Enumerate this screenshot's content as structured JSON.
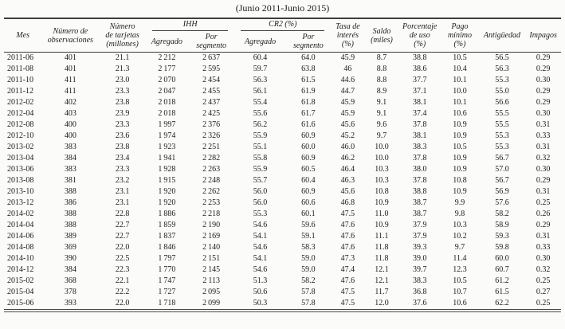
{
  "title": "(Junio 2011-Junio 2015)",
  "table": {
    "group_headers": {
      "ihh": "IHH",
      "cr2": "CR2 (%)"
    },
    "columns": {
      "mes": "Mes",
      "observaciones": "Número de\nobservaciones",
      "tarjetas": "Número\nde tarjetas\n(millones)",
      "ihh_agregado": "Agregado",
      "ihh_segmento": "Por\nsegmento",
      "cr2_agregado": "Agregado",
      "cr2_segmento": "Por\nsegmento",
      "tasa": "Tasa de\ninterés\n(%)",
      "saldo": "Saldo\n(miles)",
      "uso": "Porcentaje\nde uso\n(%)",
      "pago": "Pago\nmínimo\n(%)",
      "antiguedad": "Antigüedad",
      "impagos": "Impagos"
    },
    "column_keys": [
      "mes",
      "observaciones",
      "tarjetas",
      "ihh_agregado",
      "ihh_segmento",
      "cr2_agregado",
      "cr2_segmento",
      "tasa",
      "saldo",
      "uso",
      "pago",
      "antiguedad",
      "impagos"
    ],
    "rows": [
      [
        "2011-06",
        "401",
        "21.1",
        "2 212",
        "2 637",
        "60.4",
        "64.0",
        "45.9",
        "8.7",
        "38.8",
        "10.5",
        "56.5",
        "0.29"
      ],
      [
        "2011-08",
        "401",
        "21.3",
        "2 177",
        "2 595",
        "59.7",
        "63.8",
        "46",
        "8.8",
        "38.6",
        "10.4",
        "56.3",
        "0.29"
      ],
      [
        "2011-10",
        "411",
        "23.0",
        "2 070",
        "2 454",
        "56.3",
        "61.5",
        "44.6",
        "8.8",
        "37.7",
        "10.1",
        "55.3",
        "0.30"
      ],
      [
        "2011-12",
        "411",
        "23.3",
        "2 047",
        "2 455",
        "56.1",
        "61.9",
        "44.7",
        "8.9",
        "37.1",
        "10.0",
        "55.0",
        "0.29"
      ],
      [
        "2012-02",
        "402",
        "23.8",
        "2 018",
        "2 437",
        "55.4",
        "61.8",
        "45.9",
        "9.1",
        "38.1",
        "10.1",
        "56.6",
        "0.29"
      ],
      [
        "2012-04",
        "403",
        "23.9",
        "2 018",
        "2 425",
        "55.6",
        "61.7",
        "45.9",
        "9.1",
        "37.4",
        "10.6",
        "55.5",
        "0.30"
      ],
      [
        "2012-08",
        "400",
        "23.3",
        "1 997",
        "2 376",
        "56.2",
        "61.6",
        "45.6",
        "9.6",
        "37.8",
        "10.9",
        "55.5",
        "0.31"
      ],
      [
        "2012-10",
        "400",
        "23.6",
        "1 974",
        "2 326",
        "55.9",
        "60.9",
        "45.2",
        "9.7",
        "38.1",
        "10.9",
        "55.3",
        "0.33"
      ],
      [
        "2013-02",
        "383",
        "23.8",
        "1 923",
        "2 251",
        "55.1",
        "60.0",
        "46.0",
        "10.0",
        "38.3",
        "10.5",
        "55.3",
        "0.31"
      ],
      [
        "2013-04",
        "384",
        "23.4",
        "1 941",
        "2 282",
        "55.8",
        "60.9",
        "46.2",
        "10.0",
        "37.8",
        "10.9",
        "56.7",
        "0.32"
      ],
      [
        "2013-06",
        "383",
        "23.3",
        "1 928",
        "2 263",
        "55.9",
        "60.5",
        "46.4",
        "10.3",
        "38.0",
        "10.9",
        "57.0",
        "0.30"
      ],
      [
        "2013-08",
        "381",
        "23.2",
        "1 915",
        "2 248",
        "55.7",
        "60.4",
        "46.3",
        "10.3",
        "37.8",
        "10.8",
        "56.7",
        "0.29"
      ],
      [
        "2013-10",
        "388",
        "23.1",
        "1 920",
        "2 262",
        "56.0",
        "60.9",
        "45.6",
        "10.8",
        "38.8",
        "10.9",
        "56.9",
        "0.31"
      ],
      [
        "2013-12",
        "386",
        "23.1",
        "1 920",
        "2 253",
        "56.0",
        "60.6",
        "46.8",
        "10.9",
        "38.7",
        "9.9",
        "57.6",
        "0.25"
      ],
      [
        "2014-02",
        "388",
        "22.8",
        "1 886",
        "2 218",
        "55.3",
        "60.1",
        "47.5",
        "11.0",
        "38.7",
        "9.8",
        "58.2",
        "0.26"
      ],
      [
        "2014-04",
        "388",
        "22.7",
        "1 859",
        "2 190",
        "54.6",
        "59.6",
        "47.6",
        "10.9",
        "37.9",
        "10.3",
        "58.9",
        "0.29"
      ],
      [
        "2014-06",
        "389",
        "22.7",
        "1 837",
        "2 169",
        "54.1",
        "59.1",
        "47.6",
        "11.1",
        "37.9",
        "10.2",
        "59.3",
        "0.31"
      ],
      [
        "2014-08",
        "369",
        "22.0",
        "1 846",
        "2 140",
        "54.6",
        "58.3",
        "47.6",
        "11.8",
        "39.3",
        "9.7",
        "59.8",
        "0.33"
      ],
      [
        "2014-10",
        "390",
        "22.5",
        "1 797",
        "2 151",
        "54.1",
        "59.0",
        "47.3",
        "11.8",
        "39.0",
        "11.4",
        "60.0",
        "0.30"
      ],
      [
        "2014-12",
        "384",
        "22.3",
        "1 770",
        "2 145",
        "54.6",
        "59.0",
        "47.4",
        "12.1",
        "39.7",
        "12.3",
        "60.7",
        "0.32"
      ],
      [
        "2015-02",
        "368",
        "22.1",
        "1 747",
        "2 113",
        "51.3",
        "58.2",
        "47.6",
        "12.1",
        "38.3",
        "10.5",
        "61.2",
        "0.25"
      ],
      [
        "2015-04",
        "378",
        "22.2",
        "1 727",
        "2 095",
        "50.6",
        "57.8",
        "47.5",
        "11.7",
        "36.8",
        "10.7",
        "61.5",
        "0.27"
      ],
      [
        "2015-06",
        "393",
        "22.0",
        "1 718",
        "2 099",
        "50.3",
        "57.8",
        "47.5",
        "12.0",
        "37.6",
        "10.6",
        "62.2",
        "0.25"
      ]
    ]
  }
}
